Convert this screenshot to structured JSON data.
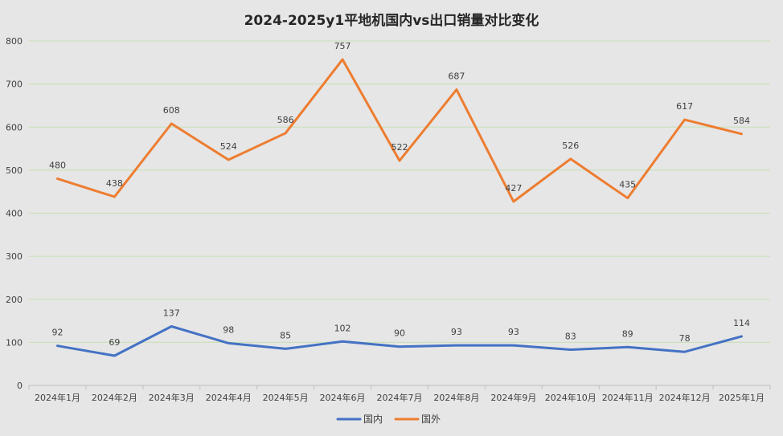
{
  "chart_data": {
    "type": "line",
    "title": "2024-2025y1平地机国内vs出口销量对比变化",
    "categories": [
      "2024年1月",
      "2024年2月",
      "2024年3月",
      "2024年4月",
      "2024年5月",
      "2024年6月",
      "2024年7月",
      "2024年8月",
      "2024年9月",
      "2024年10月",
      "2024年11月",
      "2024年12月",
      "2025年1月"
    ],
    "series": [
      {
        "name": "国内",
        "color": "#4472c4",
        "values": [
          92,
          69,
          137,
          98,
          85,
          102,
          90,
          93,
          93,
          83,
          89,
          78,
          114
        ]
      },
      {
        "name": "国外",
        "color": "#ed7d31",
        "values": [
          480,
          438,
          608,
          524,
          586,
          757,
          522,
          687,
          427,
          526,
          435,
          617,
          584
        ]
      }
    ],
    "ylim": [
      0,
      800
    ],
    "yticks": [
      0,
      100,
      200,
      300,
      400,
      500,
      600,
      700,
      800
    ],
    "xlabel": "",
    "ylabel": "",
    "grid": true,
    "gridColor": "#c6e0b4",
    "legend": "bottom-center",
    "data_labels": true
  }
}
